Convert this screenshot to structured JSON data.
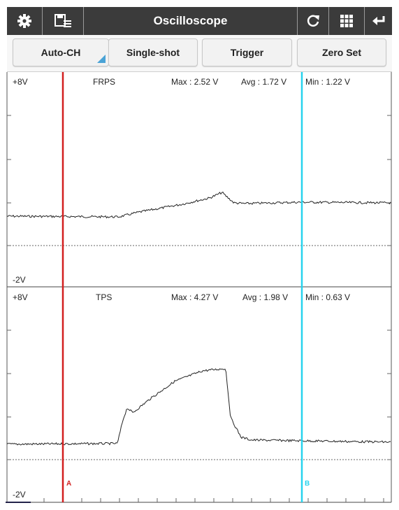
{
  "toolbar": {
    "title": "Oscilloscope",
    "icons": [
      "gear-icon",
      "save-list-icon",
      "refresh-icon",
      "grid-icon",
      "back-icon"
    ]
  },
  "buttons": {
    "auto_ch": "Auto-CH",
    "single_shot": "Single-shot",
    "trigger": "Trigger",
    "zero_set": "Zero Set"
  },
  "panels": [
    {
      "name": "FRPS",
      "top_label": "+8V",
      "bottom_label": "-2V",
      "max": "Max : 2.52 V",
      "avg": "Avg : 1.72 V",
      "min": "Min : 1.22 V"
    },
    {
      "name": "TPS",
      "top_label": "+8V",
      "bottom_label": "-2V",
      "max": "Max : 4.27 V",
      "avg": "Avg : 1.98 V",
      "min": "Min : 0.63 V"
    }
  ],
  "cursors": {
    "a_label": "A",
    "b_label": "B",
    "a_color": "#d21f1f",
    "b_color": "#27d3ee"
  },
  "colors": {
    "toolbar_bg": "#3b3b3b",
    "trace": "#222222"
  }
}
